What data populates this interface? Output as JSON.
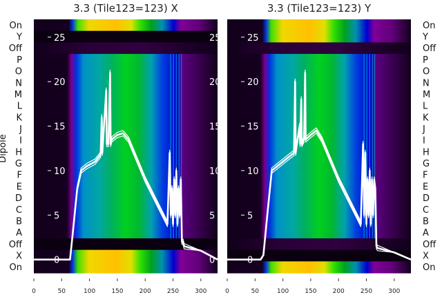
{
  "chart_data": [
    {
      "type": "heatmap",
      "title": "3.3 (Tile123=123) X",
      "ylabel": "Dipole",
      "row_labels": [
        "On",
        "Y",
        "Off",
        "P",
        "O",
        "N",
        "M",
        "L",
        "K",
        "J",
        "I",
        "H",
        "G",
        "F",
        "E",
        "D",
        "C",
        "B",
        "A",
        "Off",
        "X",
        "On"
      ],
      "row_bands": [
        "bright",
        "dark",
        "off",
        "spec",
        "spec",
        "spec",
        "spec",
        "spec",
        "spec",
        "spec",
        "spec",
        "spec",
        "spec",
        "spec",
        "spec",
        "spec",
        "spec",
        "spec",
        "spec",
        "dark",
        "bright",
        "bright"
      ],
      "xlim": [
        0,
        330
      ],
      "xticks": [
        "0",
        "50",
        "100",
        "150",
        "200",
        "250",
        "300"
      ],
      "trace_yticks": [
        "0",
        "5",
        "10",
        "15",
        "20",
        "25"
      ],
      "trace_ylim": [
        -1.5,
        27
      ],
      "trace": {
        "x": [
          0,
          65,
          70,
          78,
          85,
          95,
          110,
          120,
          122,
          123,
          126,
          130,
          131,
          134,
          137,
          138,
          140,
          150,
          160,
          170,
          180,
          200,
          220,
          240,
          244,
          246,
          248,
          250,
          252,
          254,
          256,
          258,
          260,
          262,
          264,
          266,
          268,
          270,
          300,
          330
        ],
        "y": [
          0,
          0,
          3,
          8,
          10,
          10.5,
          11,
          11.8,
          16,
          12,
          15,
          19,
          13,
          13,
          21,
          13,
          13.5,
          14,
          14.2,
          13.5,
          12,
          9,
          6.5,
          4,
          12,
          5,
          8,
          4,
          9,
          5,
          10,
          4,
          8,
          5,
          9,
          2,
          2,
          1.5,
          1,
          0
        ]
      }
    },
    {
      "type": "heatmap",
      "title": "3.3 (Tile123=123) Y",
      "row_labels": [
        "On",
        "Y",
        "Off",
        "P",
        "O",
        "N",
        "M",
        "L",
        "K",
        "J",
        "I",
        "H",
        "G",
        "F",
        "E",
        "D",
        "C",
        "B",
        "A",
        "Off",
        "X",
        "On"
      ],
      "row_bands": [
        "bright",
        "bright",
        "off",
        "spec",
        "spec",
        "spec",
        "spec",
        "spec",
        "spec",
        "spec",
        "spec",
        "spec",
        "spec",
        "spec",
        "spec",
        "spec",
        "spec",
        "spec",
        "spec",
        "off",
        "dark",
        "bright"
      ],
      "xlim": [
        0,
        330
      ],
      "xticks": [
        "0",
        "50",
        "100",
        "150",
        "200",
        "250",
        "300"
      ],
      "trace_yticks": [
        "0",
        "5",
        "10",
        "15",
        "20",
        "25"
      ],
      "trace_ylim": [
        -1.5,
        27
      ],
      "trace": {
        "x": [
          0,
          60,
          65,
          72,
          80,
          90,
          110,
          120,
          122,
          123,
          124,
          130,
          131,
          133,
          134,
          138,
          140,
          141,
          150,
          160,
          170,
          180,
          200,
          220,
          240,
          244,
          246,
          248,
          250,
          252,
          254,
          256,
          258,
          260,
          262,
          264,
          266,
          268,
          270,
          300,
          330
        ],
        "y": [
          0,
          0,
          0.5,
          5,
          10,
          10.5,
          11.5,
          12,
          20,
          12,
          12.5,
          15,
          13,
          18,
          13,
          13.5,
          21,
          13.5,
          14,
          14.5,
          13.5,
          12,
          9,
          6.5,
          4,
          13,
          5,
          12,
          4,
          9,
          5,
          10,
          4,
          9,
          5,
          9,
          8,
          1.5,
          1.3,
          0.8,
          0
        ]
      }
    }
  ]
}
